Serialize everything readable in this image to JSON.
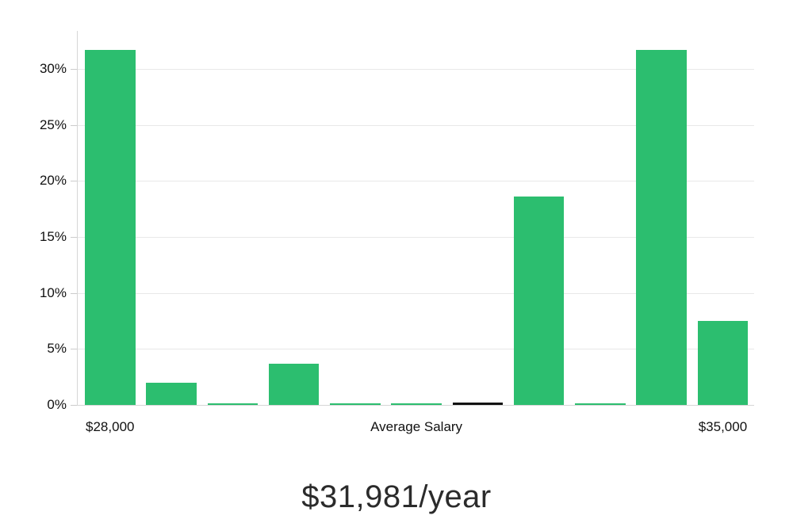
{
  "chart_data": {
    "type": "bar",
    "subtype": "histogram",
    "title": "",
    "subtitle": "$31,981/year",
    "xlabel": "Average Salary",
    "ylabel": "",
    "categories": [
      "$28,000",
      "",
      "",
      "",
      "",
      "Average Salary",
      "",
      "",
      "",
      "",
      "$35,000"
    ],
    "values": [
      31.7,
      2.0,
      0.15,
      3.7,
      0.15,
      0.15,
      0.2,
      18.6,
      0.15,
      31.7,
      7.5
    ],
    "highlight_index": 6,
    "x_tick_labels": [
      {
        "label": "$28,000",
        "bin_index": 0
      },
      {
        "label": "Average Salary",
        "bin_index": 5
      },
      {
        "label": "$35,000",
        "bin_index": 10
      }
    ],
    "yticks": [
      0,
      5,
      10,
      15,
      20,
      25,
      30
    ],
    "ytick_labels": [
      "0%",
      "5%",
      "10%",
      "15%",
      "20%",
      "25%",
      "30%"
    ],
    "ylim": [
      0,
      33.4
    ],
    "grid": true,
    "legend_position": "none",
    "colors": {
      "bar": "#2cbe6f",
      "highlight_bar": "#121212",
      "gridline": "#e8e8e8",
      "axis_line": "#d6d6d6",
      "tick_mark": "#cccccc",
      "tick_text": "#111111",
      "caption_text": "#2b2b2b",
      "background": "#ffffff"
    }
  }
}
